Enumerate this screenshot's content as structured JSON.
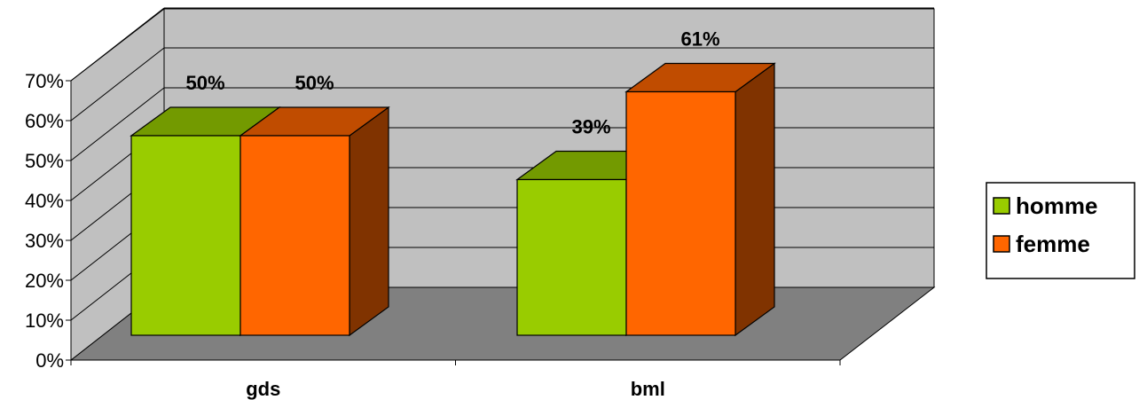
{
  "chart_data": {
    "type": "bar",
    "categories": [
      "gds",
      "bml"
    ],
    "series": [
      {
        "name": "homme",
        "values": [
          50,
          39
        ],
        "color": "#99CC00",
        "top_color": "#739A00",
        "side_color": "#5C7A00"
      },
      {
        "name": "femme",
        "values": [
          50,
          61
        ],
        "color": "#FF6600",
        "top_color": "#C04C00",
        "side_color": "#803300"
      }
    ],
    "data_labels": [
      [
        "50%",
        "39%"
      ],
      [
        "50%",
        "61%"
      ]
    ],
    "y_ticks": [
      "0%",
      "10%",
      "20%",
      "30%",
      "40%",
      "50%",
      "60%",
      "70%"
    ],
    "ylim": [
      0,
      70
    ],
    "grid": true,
    "three_d": true,
    "legend_position": "right",
    "title": "",
    "xlabel": "",
    "ylabel": "",
    "wall_color": "#C0C0C0",
    "floor_color": "#808080"
  }
}
